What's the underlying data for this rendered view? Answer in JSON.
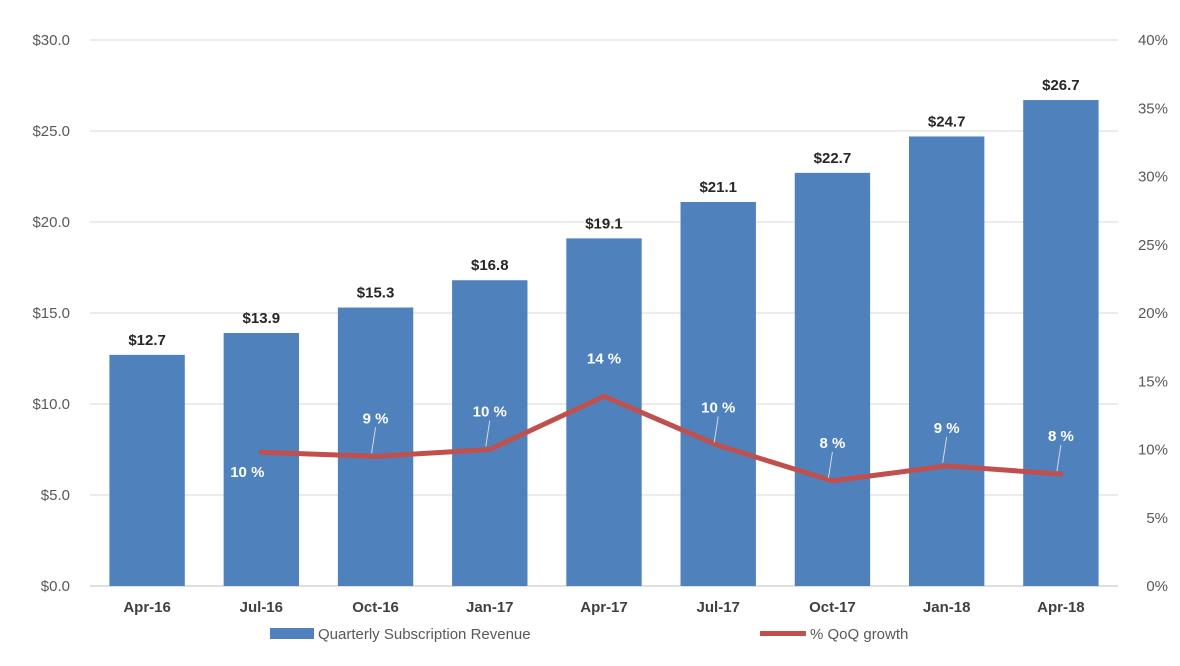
{
  "chart_data": {
    "type": "bar",
    "title": "",
    "xlabel": "",
    "ylabel": "",
    "categories": [
      "Apr-16",
      "Jul-16",
      "Oct-16",
      "Jan-17",
      "Apr-17",
      "Jul-17",
      "Oct-17",
      "Jan-18",
      "Apr-18"
    ],
    "series": [
      {
        "name": "Quarterly Subscription Revenue",
        "type": "bar",
        "axis": "left",
        "color": "#4F81BD",
        "values": [
          12.7,
          13.9,
          15.3,
          16.8,
          19.1,
          21.1,
          22.7,
          24.7,
          26.7
        ],
        "labels": [
          "$12.7",
          "$13.9",
          "$15.3",
          "$16.8",
          "$19.1",
          "$21.1",
          "$22.7",
          "$24.7",
          "$26.7"
        ]
      },
      {
        "name": "% QoQ growth",
        "type": "line",
        "axis": "right",
        "color": "#C0504D",
        "values": [
          null,
          9.8,
          9.5,
          10.0,
          13.9,
          10.3,
          7.7,
          8.8,
          8.2
        ],
        "labels": [
          "",
          "10 %",
          "9 %",
          "10 %",
          "14 %",
          "10 %",
          "8 %",
          "9 %",
          "8 %"
        ]
      }
    ],
    "y_left": {
      "range": [
        0,
        30
      ],
      "ticks": [
        0,
        5,
        10,
        15,
        20,
        25,
        30
      ],
      "tick_labels": [
        "$0.0",
        "$5.0",
        "$10.0",
        "$15.0",
        "$20.0",
        "$25.0",
        "$30.0"
      ]
    },
    "y_right": {
      "range": [
        0,
        40
      ],
      "ticks": [
        0,
        5,
        10,
        15,
        20,
        25,
        30,
        35,
        40
      ],
      "tick_labels": [
        "0%",
        "5%",
        "10%",
        "15%",
        "20%",
        "25%",
        "30%",
        "35%",
        "40%"
      ]
    },
    "grid": true,
    "legend": "bottom"
  }
}
